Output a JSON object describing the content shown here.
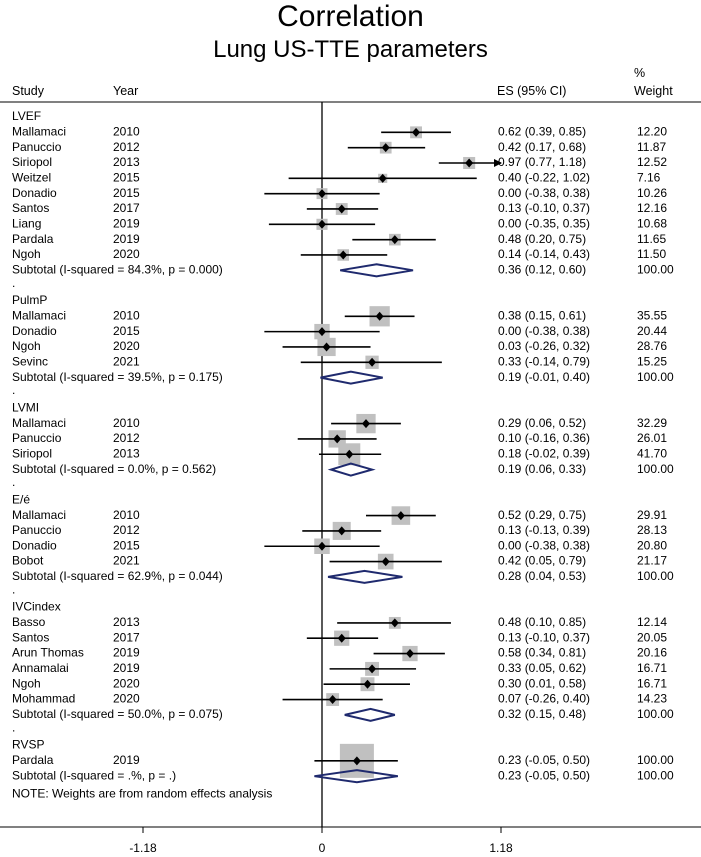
{
  "header": {
    "title": "Correlation",
    "subtitle": "Lung US-TTE parameters",
    "col_study": "Study",
    "col_year": "Year",
    "col_es": "ES (95% CI)",
    "col_weight_line1": "%",
    "col_weight_line2": "Weight"
  },
  "footnote": "NOTE: Weights are from random effects analysis",
  "colors": {
    "point": "#000000",
    "box": "#c0c0c0",
    "diamond": "#1f2a6e",
    "line": "#000000"
  },
  "chart_data": {
    "type": "forest",
    "xaxis": {
      "ticks": [
        -1.18,
        0,
        1.18
      ],
      "tick_labels": [
        "-1.18",
        "0",
        "1.18"
      ],
      "range": [
        -1.18,
        1.18
      ]
    },
    "groups": [
      {
        "name": "LVEF",
        "studies": [
          {
            "study": "Mallamaci",
            "year": "2010",
            "es": 0.62,
            "lo": 0.39,
            "hi": 0.85,
            "label": "0.62 (0.39, 0.85)",
            "weight": "12.20"
          },
          {
            "study": "Panuccio",
            "year": "2012",
            "es": 0.42,
            "lo": 0.17,
            "hi": 0.68,
            "label": "0.42 (0.17, 0.68)",
            "weight": "11.87"
          },
          {
            "study": "Siriopol",
            "year": "2013",
            "es": 0.97,
            "lo": 0.77,
            "hi": 1.18,
            "label": "0.97 (0.77, 1.18)",
            "weight": "12.52",
            "arrow": true
          },
          {
            "study": "Weitzel",
            "year": "2015",
            "es": 0.4,
            "lo": -0.22,
            "hi": 1.02,
            "label": "0.40 (-0.22, 1.02)",
            "weight": "7.16"
          },
          {
            "study": "Donadio",
            "year": "2015",
            "es": 0.0,
            "lo": -0.38,
            "hi": 0.38,
            "label": "0.00 (-0.38, 0.38)",
            "weight": "10.26"
          },
          {
            "study": "Santos",
            "year": "2017",
            "es": 0.13,
            "lo": -0.1,
            "hi": 0.37,
            "label": "0.13 (-0.10, 0.37)",
            "weight": "12.16"
          },
          {
            "study": "Liang",
            "year": "2019",
            "es": 0.0,
            "lo": -0.35,
            "hi": 0.35,
            "label": "0.00 (-0.35, 0.35)",
            "weight": "10.68"
          },
          {
            "study": "Pardala",
            "year": "2019",
            "es": 0.48,
            "lo": 0.2,
            "hi": 0.75,
            "label": "0.48 (0.20, 0.75)",
            "weight": "11.65"
          },
          {
            "study": "Ngoh",
            "year": "2020",
            "es": 0.14,
            "lo": -0.14,
            "hi": 0.43,
            "label": "0.14 (-0.14, 0.43)",
            "weight": "11.50"
          }
        ],
        "subtotal": {
          "text": "Subtotal  (I-squared = 84.3%, p = 0.000)",
          "es": 0.36,
          "lo": 0.12,
          "hi": 0.6,
          "label": "0.36 (0.12, 0.60)",
          "weight": "100.00"
        }
      },
      {
        "name": "PulmP",
        "studies": [
          {
            "study": "Mallamaci",
            "year": "2010",
            "es": 0.38,
            "lo": 0.15,
            "hi": 0.61,
            "label": "0.38 (0.15, 0.61)",
            "weight": "35.55"
          },
          {
            "study": "Donadio",
            "year": "2015",
            "es": 0.0,
            "lo": -0.38,
            "hi": 0.38,
            "label": "0.00 (-0.38, 0.38)",
            "weight": "20.44"
          },
          {
            "study": "Ngoh",
            "year": "2020",
            "es": 0.03,
            "lo": -0.26,
            "hi": 0.32,
            "label": "0.03 (-0.26, 0.32)",
            "weight": "28.76"
          },
          {
            "study": "Sevinc",
            "year": "2021",
            "es": 0.33,
            "lo": -0.14,
            "hi": 0.79,
            "label": "0.33 (-0.14, 0.79)",
            "weight": "15.25"
          }
        ],
        "subtotal": {
          "text": "Subtotal  (I-squared = 39.5%, p = 0.175)",
          "es": 0.19,
          "lo": -0.01,
          "hi": 0.4,
          "label": "0.19 (-0.01, 0.40)",
          "weight": "100.00"
        }
      },
      {
        "name": "LVMI",
        "studies": [
          {
            "study": "Mallamaci",
            "year": "2010",
            "es": 0.29,
            "lo": 0.06,
            "hi": 0.52,
            "label": "0.29 (0.06, 0.52)",
            "weight": "32.29"
          },
          {
            "study": "Panuccio",
            "year": "2012",
            "es": 0.1,
            "lo": -0.16,
            "hi": 0.36,
            "label": "0.10 (-0.16, 0.36)",
            "weight": "26.01"
          },
          {
            "study": "Siriopol",
            "year": "2013",
            "es": 0.18,
            "lo": -0.02,
            "hi": 0.39,
            "label": "0.18 (-0.02, 0.39)",
            "weight": "41.70"
          }
        ],
        "subtotal": {
          "text": "Subtotal  (I-squared = 0.0%, p = 0.562)",
          "es": 0.19,
          "lo": 0.06,
          "hi": 0.33,
          "label": "0.19 (0.06, 0.33)",
          "weight": "100.00"
        }
      },
      {
        "name": "E/é",
        "studies": [
          {
            "study": "Mallamaci",
            "year": "2010",
            "es": 0.52,
            "lo": 0.29,
            "hi": 0.75,
            "label": "0.52 (0.29, 0.75)",
            "weight": "29.91"
          },
          {
            "study": "Panuccio",
            "year": "2012",
            "es": 0.13,
            "lo": -0.13,
            "hi": 0.39,
            "label": "0.13 (-0.13, 0.39)",
            "weight": "28.13"
          },
          {
            "study": "Donadio",
            "year": "2015",
            "es": 0.0,
            "lo": -0.38,
            "hi": 0.38,
            "label": "0.00 (-0.38, 0.38)",
            "weight": "20.80"
          },
          {
            "study": "Bobot",
            "year": "2021",
            "es": 0.42,
            "lo": 0.05,
            "hi": 0.79,
            "label": "0.42 (0.05, 0.79)",
            "weight": "21.17"
          }
        ],
        "subtotal": {
          "text": "Subtotal  (I-squared = 62.9%, p = 0.044)",
          "es": 0.28,
          "lo": 0.04,
          "hi": 0.53,
          "label": "0.28 (0.04, 0.53)",
          "weight": "100.00"
        }
      },
      {
        "name": "IVCindex",
        "studies": [
          {
            "study": "Basso",
            "year": "2013",
            "es": 0.48,
            "lo": 0.1,
            "hi": 0.85,
            "label": "0.48 (0.10, 0.85)",
            "weight": "12.14"
          },
          {
            "study": "Santos",
            "year": "2017",
            "es": 0.13,
            "lo": -0.1,
            "hi": 0.37,
            "label": "0.13 (-0.10, 0.37)",
            "weight": "20.05"
          },
          {
            "study": "Arun Thomas",
            "year": "2019",
            "es": 0.58,
            "lo": 0.34,
            "hi": 0.81,
            "label": "0.58 (0.34, 0.81)",
            "weight": "20.16"
          },
          {
            "study": "Annamalai",
            "year": "2019",
            "es": 0.33,
            "lo": 0.05,
            "hi": 0.62,
            "label": "0.33 (0.05, 0.62)",
            "weight": "16.71"
          },
          {
            "study": "Ngoh",
            "year": "2020",
            "es": 0.3,
            "lo": 0.01,
            "hi": 0.58,
            "label": "0.30 (0.01, 0.58)",
            "weight": "16.71"
          },
          {
            "study": "Mohammad",
            "year": "2020",
            "es": 0.07,
            "lo": -0.26,
            "hi": 0.4,
            "label": "0.07 (-0.26, 0.40)",
            "weight": "14.23"
          }
        ],
        "subtotal": {
          "text": "Subtotal  (I-squared = 50.0%, p = 0.075)",
          "es": 0.32,
          "lo": 0.15,
          "hi": 0.48,
          "label": "0.32 (0.15, 0.48)",
          "weight": "100.00"
        }
      },
      {
        "name": "RVSP",
        "studies": [
          {
            "study": "Pardala",
            "year": "2019",
            "es": 0.23,
            "lo": -0.05,
            "hi": 0.5,
            "label": "0.23 (-0.05, 0.50)",
            "weight": "100.00"
          }
        ],
        "subtotal": {
          "text": "Subtotal  (I-squared = .%, p = .)",
          "es": 0.23,
          "lo": -0.05,
          "hi": 0.5,
          "label": "0.23 (-0.05, 0.50)",
          "weight": "100.00"
        }
      }
    ]
  }
}
